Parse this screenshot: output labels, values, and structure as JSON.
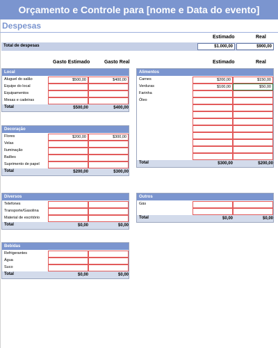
{
  "title": "Orçamento e Controle para [nome e Data do evento]",
  "subtitle": "Despesas",
  "top_headers": {
    "estimated": "Estimado",
    "real": "Real"
  },
  "total_expenses": {
    "label": "Total de despesas",
    "estimated": "$1.000,00",
    "real": "$900,00"
  },
  "col_headers_left": {
    "estimated": "Gasto Estimado",
    "real": "Gasto Real"
  },
  "col_headers_right": {
    "estimated": "Estimado",
    "real": "Real"
  },
  "local": {
    "title": "Local",
    "rows": [
      {
        "name": "Aluguel do salão",
        "est": "$500,00",
        "real": "$400,00"
      },
      {
        "name": "Equipe do local",
        "est": "",
        "real": ""
      },
      {
        "name": "Equipamentos",
        "est": "",
        "real": ""
      },
      {
        "name": "Mesas e cadeiras",
        "est": "",
        "real": ""
      }
    ],
    "total": {
      "label": "Total",
      "est": "$500,00",
      "real": "$400,00"
    }
  },
  "decoracao": {
    "title": "Decoração",
    "rows": [
      {
        "name": "Flores",
        "est": "$200,00",
        "real": "$300,00"
      },
      {
        "name": "Velas",
        "est": "",
        "real": ""
      },
      {
        "name": "Iluminação",
        "est": "",
        "real": ""
      },
      {
        "name": "Balões",
        "est": "",
        "real": ""
      },
      {
        "name": "Suprimento de papel",
        "est": "",
        "real": ""
      }
    ],
    "total": {
      "label": "Total",
      "est": "$200,00",
      "real": "$300,00"
    }
  },
  "diversos": {
    "title": "Diversos",
    "rows": [
      {
        "name": "Telefones",
        "est": "",
        "real": ""
      },
      {
        "name": "Transporte/Gasolina",
        "est": "",
        "real": ""
      },
      {
        "name": "Material de escritório",
        "est": "",
        "real": ""
      }
    ],
    "total": {
      "label": "Total",
      "est": "$0,00",
      "real": "$0,00"
    }
  },
  "bebidas": {
    "title": "Bebidas",
    "rows": [
      {
        "name": "Refrigerantes",
        "est": "",
        "real": ""
      },
      {
        "name": "Água",
        "est": "",
        "real": ""
      },
      {
        "name": "Suco",
        "est": "",
        "real": ""
      }
    ],
    "total": {
      "label": "Total",
      "est": "$0,00",
      "real": "$0,00"
    }
  },
  "alimentos": {
    "title": "Alimentos",
    "rows": [
      {
        "name": "Carnes",
        "est": "$200,00",
        "real": "$150,00"
      },
      {
        "name": "Verduras",
        "est": "$100,00",
        "real": "$50,00"
      },
      {
        "name": "Farinha",
        "est": "",
        "real": ""
      },
      {
        "name": "Óleo",
        "est": "",
        "real": ""
      },
      {
        "name": "",
        "est": "",
        "real": ""
      },
      {
        "name": "",
        "est": "",
        "real": ""
      },
      {
        "name": "",
        "est": "",
        "real": ""
      },
      {
        "name": "",
        "est": "",
        "real": ""
      },
      {
        "name": "",
        "est": "",
        "real": ""
      },
      {
        "name": "",
        "est": "",
        "real": ""
      },
      {
        "name": "",
        "est": "",
        "real": ""
      },
      {
        "name": "",
        "est": "",
        "real": ""
      }
    ],
    "total": {
      "label": "Total",
      "est": "$300,00",
      "real": "$200,00"
    }
  },
  "outros": {
    "title": "Outros",
    "rows": [
      {
        "name": "Gás",
        "est": "",
        "real": ""
      },
      {
        "name": "",
        "est": "",
        "real": ""
      }
    ],
    "total": {
      "label": "Total",
      "est": "$0,00",
      "real": "$0,00"
    }
  }
}
